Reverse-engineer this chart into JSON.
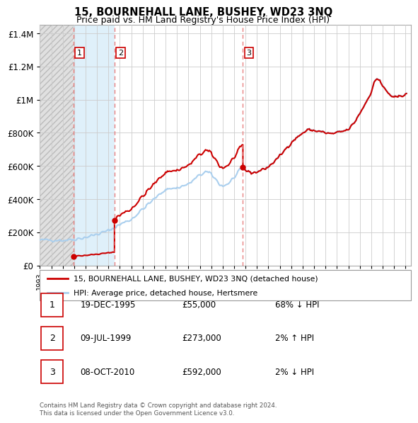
{
  "title_line1": "15, BOURNEHALL LANE, BUSHEY, WD23 3NQ",
  "title_line2": "Price paid vs. HM Land Registry's House Price Index (HPI)",
  "ytick_values": [
    0,
    200000,
    400000,
    600000,
    800000,
    1000000,
    1200000,
    1400000
  ],
  "ylim": [
    0,
    1450000
  ],
  "xlim_start": 1993.0,
  "xlim_end": 2025.5,
  "hatch_end_year": 1995.97,
  "sale_dates": [
    1995.97,
    1999.53,
    2010.77
  ],
  "sale_prices": [
    55000,
    273000,
    592000
  ],
  "sale_labels": [
    "1",
    "2",
    "3"
  ],
  "hpi_line_color": "#AACFEE",
  "sale_line_color": "#CC0000",
  "sale_dot_color": "#CC0000",
  "vline_color": "#E88080",
  "hatch_color": "#D0D0D0",
  "grid_color": "#CCCCCC",
  "light_blue_bg": "#DFF0FA",
  "background_color": "#FFFFFF",
  "legend_label1": "15, BOURNEHALL LANE, BUSHEY, WD23 3NQ (detached house)",
  "legend_label2": "HPI: Average price, detached house, Hertsmere",
  "table_entries": [
    {
      "num": "1",
      "date": "19-DEC-1995",
      "price": "£55,000",
      "hpi": "68% ↓ HPI"
    },
    {
      "num": "2",
      "date": "09-JUL-1999",
      "price": "£273,000",
      "hpi": "2% ↑ HPI"
    },
    {
      "num": "3",
      "date": "08-OCT-2010",
      "price": "£592,000",
      "hpi": "2% ↓ HPI"
    }
  ],
  "footnote": "Contains HM Land Registry data © Crown copyright and database right 2024.\nThis data is licensed under the Open Government Licence v3.0."
}
